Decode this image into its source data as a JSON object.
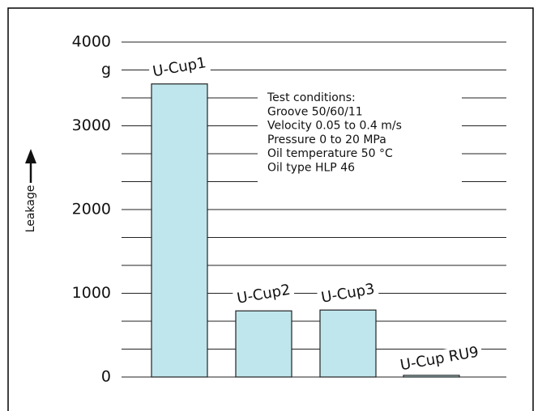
{
  "chart_data": {
    "type": "bar",
    "y_label": "Leakage",
    "y_unit": "g",
    "categories": [
      "U-Cup1",
      "U-Cup2",
      "U-Cup3",
      "U-Cup RU9"
    ],
    "values": [
      3500,
      790,
      800,
      20
    ],
    "color": "#bfe6ec",
    "ylim": [
      0,
      4000
    ],
    "yticks": [
      0,
      1000,
      2000,
      3000,
      4000
    ],
    "grid": true,
    "grid_subdivisions": 3,
    "annotation": [
      "Test conditions:",
      "Groove 50/60/11",
      "Velocity 0.05 to 0.4 m/s",
      "Pressure 0 to 20 MPa",
      "Oil temperature 50 °C",
      "Oil type HLP 46"
    ]
  }
}
